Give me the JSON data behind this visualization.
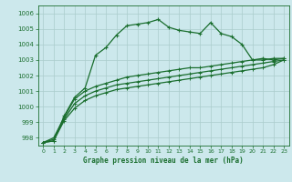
{
  "title": "Graphe pression niveau de la mer (hPa)",
  "bg_color": "#cce8ec",
  "grid_color": "#aacccc",
  "line_color": "#1a6e2e",
  "ylim": [
    997.5,
    1006.5
  ],
  "yticks": [
    998,
    999,
    1000,
    1001,
    1002,
    1003,
    1004,
    1005,
    1006
  ],
  "xlim": [
    -0.5,
    23.5
  ],
  "xticks": [
    0,
    1,
    2,
    3,
    4,
    5,
    6,
    7,
    8,
    9,
    10,
    11,
    12,
    13,
    14,
    15,
    16,
    17,
    18,
    19,
    20,
    21,
    22,
    23
  ],
  "series": [
    [
      997.7,
      997.8,
      999.4,
      1000.6,
      1001.2,
      1003.3,
      1003.8,
      1004.6,
      1005.2,
      1005.3,
      1005.4,
      1005.6,
      1005.1,
      1004.9,
      1004.8,
      1004.7,
      1005.4,
      1004.7,
      1004.5,
      1004.0,
      1003.0,
      1003.1,
      1003.0,
      1003.1
    ],
    [
      997.7,
      998.0,
      999.3,
      1000.5,
      1001.0,
      1001.3,
      1001.5,
      1001.7,
      1001.9,
      1002.0,
      1002.1,
      1002.2,
      1002.3,
      1002.4,
      1002.5,
      1002.5,
      1002.6,
      1002.7,
      1002.8,
      1002.9,
      1003.0,
      1003.0,
      1003.1,
      1003.1
    ],
    [
      997.7,
      997.9,
      999.2,
      1000.2,
      1000.7,
      1001.0,
      1001.2,
      1001.4,
      1001.5,
      1001.6,
      1001.7,
      1001.8,
      1001.9,
      1002.0,
      1002.1,
      1002.2,
      1002.3,
      1002.4,
      1002.5,
      1002.6,
      1002.7,
      1002.8,
      1002.9,
      1003.0
    ],
    [
      997.7,
      997.8,
      999.1,
      999.9,
      1000.4,
      1000.7,
      1000.9,
      1001.1,
      1001.2,
      1001.3,
      1001.4,
      1001.5,
      1001.6,
      1001.7,
      1001.8,
      1001.9,
      1002.0,
      1002.1,
      1002.2,
      1002.3,
      1002.4,
      1002.5,
      1002.7,
      1003.0
    ]
  ]
}
